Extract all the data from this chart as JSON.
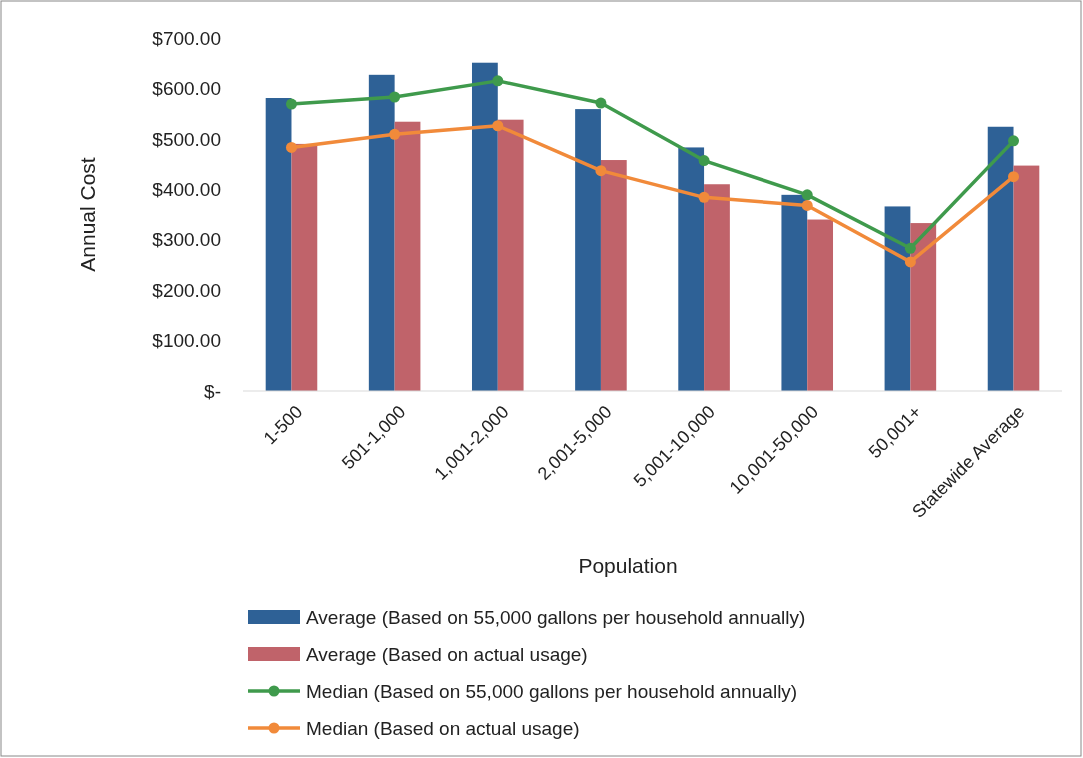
{
  "chart_data": {
    "type": "bar",
    "xlabel": "Population",
    "ylabel": "Annual Cost",
    "categories": [
      "1-500",
      "501-1,000",
      "1,001-2,000",
      "2,001-5,000",
      "5,001-10,000",
      "10,001-50,000",
      "50,001+",
      "Statewide Average"
    ],
    "series": [
      {
        "name": "Average (Based on 55,000 gallons per household annually)",
        "color": "#2e6196",
        "values": [
          581,
          627,
          651,
          559,
          483,
          389,
          366,
          524
        ]
      },
      {
        "name": "Average (Based on actual usage)",
        "color": "#c0636a",
        "values": [
          490,
          534,
          538,
          458,
          410,
          340,
          333,
          447
        ]
      },
      {
        "name": "Median (Based on 55,000 gallons per household annually)",
        "type": "line",
        "color": "#3f9a4c",
        "values": [
          569,
          583,
          615,
          571,
          457,
          389,
          283,
          496
        ]
      },
      {
        "name": "Median (Based on actual usage)",
        "type": "line",
        "color": "#f18a3a",
        "values": [
          483,
          509,
          526,
          437,
          384,
          368,
          256,
          425
        ]
      }
    ],
    "ylim": [
      0,
      700
    ],
    "yticks": [
      {
        "value": 0,
        "label": "$-"
      },
      {
        "value": 100,
        "label": "$100.00"
      },
      {
        "value": 200,
        "label": "$200.00"
      },
      {
        "value": 300,
        "label": "$300.00"
      },
      {
        "value": 400,
        "label": "$400.00"
      },
      {
        "value": 500,
        "label": "$500.00"
      },
      {
        "value": 600,
        "label": "$600.00"
      },
      {
        "value": 700,
        "label": "$700.00"
      }
    ],
    "marker": "circle",
    "legend": "bottom",
    "grid": false
  }
}
